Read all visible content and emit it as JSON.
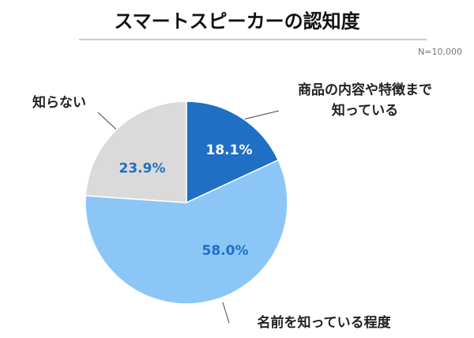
{
  "chart_data": {
    "type": "pie",
    "title": "スマートスピーカーの認知度",
    "note": "N=10,000",
    "categories": [
      "商品の内容や特徴まで\n知っている",
      "名前を知っている程度",
      "知らない"
    ],
    "values": [
      18.1,
      58.0,
      23.9
    ],
    "value_labels": [
      "18.1%",
      "58.0%",
      "23.9%"
    ],
    "colors": [
      "#1f6fc5",
      "#8cc6f7",
      "#dadada"
    ],
    "value_label_colors": [
      "#ffffff",
      "#1f6fc5",
      "#1f6fc5"
    ]
  }
}
